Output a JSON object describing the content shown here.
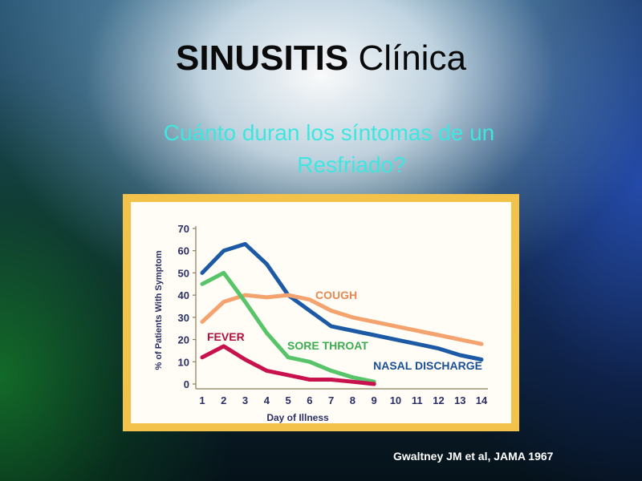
{
  "slide": {
    "title_bold": "SINUSITIS",
    "title_rest": "Clínica",
    "subtitle_line1": "Cuánto duran los síntomas de un",
    "subtitle_line2": "Resfriado?",
    "citation": "Gwaltney  JM et al, JAMA 1967"
  },
  "chart_data": {
    "type": "line",
    "xlabel": "Day of Illness",
    "ylabel": "% of Patients With Symptom",
    "x": [
      1,
      2,
      3,
      4,
      5,
      6,
      7,
      8,
      9,
      10,
      11,
      12,
      13,
      14
    ],
    "xlim": [
      1,
      14
    ],
    "ylim": [
      0,
      70
    ],
    "xticks": [
      "1",
      "2",
      "3",
      "4",
      "5",
      "6",
      "7",
      "8",
      "9",
      "10",
      "11",
      "12",
      "13",
      "14"
    ],
    "yticks": [
      "0",
      "10",
      "20",
      "30",
      "40",
      "50",
      "60",
      "70"
    ],
    "grid": false,
    "series": [
      {
        "name": "NASAL DISCHARGE",
        "color": "#1d5aa6",
        "x": [
          1,
          2,
          3,
          4,
          5,
          6,
          7,
          8,
          9,
          10,
          11,
          12,
          13,
          14
        ],
        "values": [
          50,
          60,
          63,
          54,
          40,
          33,
          26,
          24,
          22,
          20,
          18,
          16,
          13,
          11
        ]
      },
      {
        "name": "COUGH",
        "color": "#f4a26e",
        "x": [
          1,
          2,
          3,
          4,
          5,
          6,
          7,
          8,
          9,
          10,
          11,
          12,
          13,
          14
        ],
        "values": [
          28,
          37,
          40,
          39,
          40,
          38,
          33,
          30,
          28,
          26,
          24,
          22,
          20,
          18
        ]
      },
      {
        "name": "SORE THROAT",
        "color": "#57c46a",
        "x": [
          1,
          2,
          3,
          4,
          5,
          6,
          7,
          8,
          9
        ],
        "values": [
          45,
          50,
          37,
          23,
          12,
          10,
          6,
          3,
          1
        ]
      },
      {
        "name": "FEVER",
        "color": "#c8124e",
        "x": [
          1,
          2,
          3,
          4,
          5,
          6,
          7,
          8,
          9
        ],
        "values": [
          12,
          17,
          11,
          6,
          4,
          2,
          2,
          1,
          0
        ]
      }
    ]
  }
}
